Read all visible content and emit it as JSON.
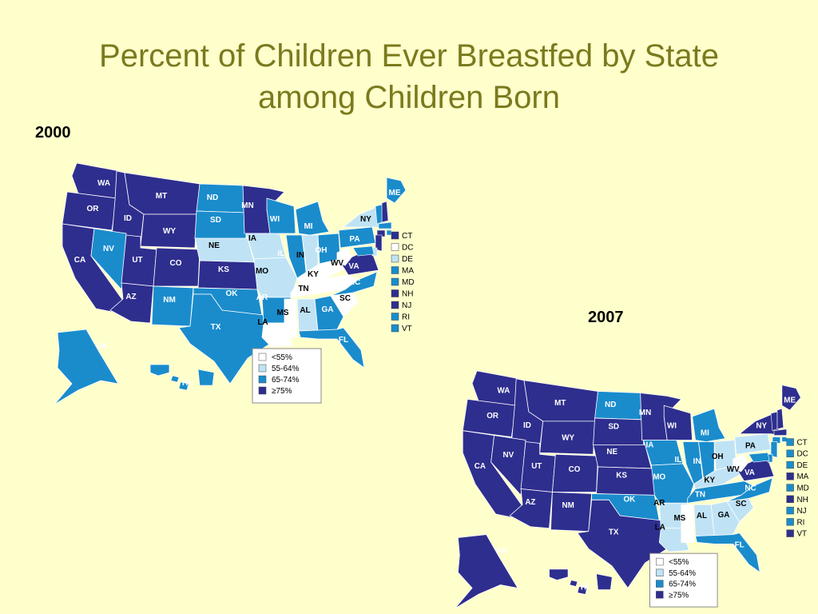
{
  "title_line1": "Percent of Children Ever Breastfed by State",
  "title_line2": "among Children Born",
  "colors": {
    "lt55": "#ffffff",
    "c55_64": "#bfe3f5",
    "c65_74": "#1a8ccc",
    "ge75": "#2e2e8e",
    "background": "#ffffcc",
    "title": "#7a7a1e"
  },
  "legend_labels": [
    "<55%",
    "55-64%",
    "65-74%",
    "≥75%"
  ],
  "maps": [
    {
      "year": "2000",
      "states": {
        "WA": "ge75",
        "OR": "ge75",
        "CA": "ge75",
        "ID": "ge75",
        "NV": "c65_74",
        "MT": "ge75",
        "WY": "ge75",
        "UT": "ge75",
        "AZ": "ge75",
        "CO": "ge75",
        "NM": "c65_74",
        "ND": "c65_74",
        "SD": "c65_74",
        "NE": "c55_64",
        "KS": "ge75",
        "OK": "c65_74",
        "TX": "c65_74",
        "MN": "ge75",
        "IA": "c55_64",
        "MO": "c55_64",
        "AR": "c65_74",
        "LA": "lt55",
        "WI": "c65_74",
        "IL": "c65_74",
        "MI": "c65_74",
        "IN": "c55_64",
        "OH": "c65_74",
        "KY": "lt55",
        "TN": "lt55",
        "MS": "lt55",
        "AL": "c55_64",
        "GA": "c65_74",
        "FL": "c65_74",
        "SC": "lt55",
        "NC": "c65_74",
        "VA": "ge75",
        "WV": "lt55",
        "PA": "c65_74",
        "NY": "c55_64",
        "ME": "c65_74",
        "AK": "c65_74",
        "HI": "c65_74"
      },
      "small_states": [
        {
          "code": "CT",
          "cat": "ge75"
        },
        {
          "code": "DC",
          "cat": "lt55"
        },
        {
          "code": "DE",
          "cat": "c55_64"
        },
        {
          "code": "MA",
          "cat": "c65_74"
        },
        {
          "code": "MD",
          "cat": "c65_74"
        },
        {
          "code": "NH",
          "cat": "ge75"
        },
        {
          "code": "NJ",
          "cat": "ge75"
        },
        {
          "code": "RI",
          "cat": "c65_74"
        },
        {
          "code": "VT",
          "cat": "c65_74"
        }
      ]
    },
    {
      "year": "2007",
      "states": {
        "WA": "ge75",
        "OR": "ge75",
        "CA": "ge75",
        "ID": "ge75",
        "NV": "ge75",
        "MT": "ge75",
        "WY": "ge75",
        "UT": "ge75",
        "AZ": "ge75",
        "CO": "ge75",
        "NM": "ge75",
        "ND": "c65_74",
        "SD": "ge75",
        "NE": "ge75",
        "KS": "ge75",
        "OK": "c65_74",
        "TX": "ge75",
        "MN": "ge75",
        "IA": "c65_74",
        "MO": "c65_74",
        "AR": "c55_64",
        "LA": "c55_64",
        "WI": "ge75",
        "IL": "c65_74",
        "MI": "c65_74",
        "IN": "c65_74",
        "OH": "c55_64",
        "KY": "c55_64",
        "TN": "c65_74",
        "MS": "lt55",
        "AL": "c55_64",
        "GA": "c55_64",
        "FL": "c65_74",
        "SC": "c55_64",
        "NC": "c65_74",
        "VA": "ge75",
        "WV": "lt55",
        "PA": "c55_64",
        "NY": "ge75",
        "ME": "ge75",
        "AK": "ge75",
        "HI": "ge75"
      },
      "small_states": [
        {
          "code": "CT",
          "cat": "c65_74"
        },
        {
          "code": "DC",
          "cat": "c65_74"
        },
        {
          "code": "DE",
          "cat": "c65_74"
        },
        {
          "code": "MA",
          "cat": "ge75"
        },
        {
          "code": "MD",
          "cat": "c65_74"
        },
        {
          "code": "NH",
          "cat": "ge75"
        },
        {
          "code": "NJ",
          "cat": "c65_74"
        },
        {
          "code": "RI",
          "cat": "c65_74"
        },
        {
          "code": "VT",
          "cat": "ge75"
        }
      ]
    }
  ]
}
